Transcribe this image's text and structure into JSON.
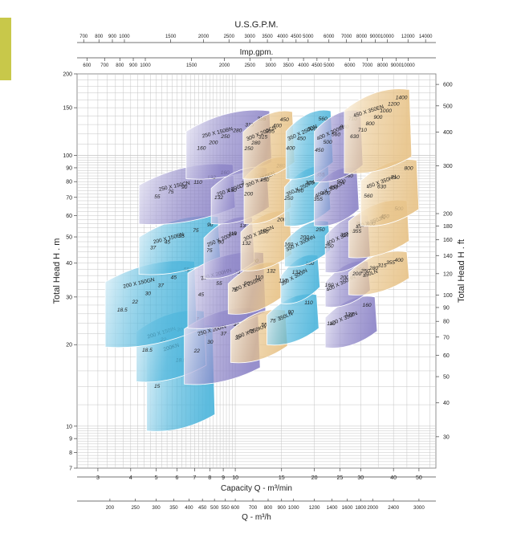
{
  "chart_data": {
    "type": "area",
    "title": "",
    "axes": {
      "top_usgpm": {
        "label": "U.S.G.P.M.",
        "ticks": [
          "700",
          "800",
          "900",
          "1000",
          "1500",
          "2000",
          "2500",
          "3000",
          "3500",
          "4000",
          "4500",
          "5000",
          "6000",
          "7000",
          "8000",
          "9000",
          "10000",
          "12000",
          "14000"
        ]
      },
      "top_imp": {
        "label": "Imp.gpm.",
        "ticks": [
          "600",
          "700",
          "800",
          "900",
          "1000",
          "1500",
          "2000",
          "2500",
          "3000",
          "3500",
          "4000",
          "4500",
          "5000",
          "6000",
          "7000",
          "8000",
          "9000",
          "10000"
        ]
      },
      "bottom_m3min": {
        "label": "Capacity Q - m³/min",
        "ticks": [
          "3",
          "4",
          "5",
          "6",
          "7",
          "8",
          "9",
          "10",
          "15",
          "20",
          "25",
          "30",
          "40",
          "50"
        ],
        "range": [
          2.5,
          58
        ],
        "scale": "log"
      },
      "bottom_m3h": {
        "label": "Q - m³/h",
        "ticks": [
          "200",
          "250",
          "300",
          "350",
          "400",
          "450",
          "500",
          "550",
          "600",
          "700",
          "800",
          "900",
          "1000",
          "1200",
          "1400",
          "1600",
          "1800",
          "2000",
          "2400",
          "3000"
        ]
      },
      "left_m": {
        "label": "Total Head H . m",
        "ticks": [
          "7",
          "8",
          "9",
          "10",
          "20",
          "30",
          "40",
          "50",
          "60",
          "70",
          "80",
          "90",
          "100",
          "150",
          "200"
        ],
        "range": [
          7,
          200
        ],
        "scale": "log"
      },
      "right_ft": {
        "label": "Total Head H . ft",
        "ticks": [
          "30",
          "40",
          "50",
          "60",
          "70",
          "80",
          "90",
          "100",
          "120",
          "140",
          "160",
          "180",
          "200",
          "300",
          "400",
          "500",
          "600"
        ]
      }
    },
    "grid": true,
    "series": [
      {
        "name": "200KN",
        "color": "#4fb6dc",
        "shade": "#e6f4fa",
        "q_range": [
          4.6,
          8.2
        ],
        "h_range": [
          9.6,
          23.5
        ],
        "labels": [
          "22",
          "18.5",
          "15"
        ]
      },
      {
        "name": "200 X 150IN",
        "color": "#4fb6dc",
        "shade": "#e6f4fa",
        "q_range": [
          4.2,
          7.6
        ],
        "h_range": [
          14.6,
          26.6
        ],
        "labels": [
          "37",
          "30",
          "22",
          "18.5"
        ]
      },
      {
        "name": "200 X 150GN",
        "color": "#4fb6dc",
        "shade": "#e6f4fa",
        "q_range": [
          3.2,
          7.0
        ],
        "h_range": [
          19.6,
          40.6
        ],
        "labels": [
          "55",
          "45",
          "37",
          "30",
          "22",
          "18.5"
        ]
      },
      {
        "name": "200 X 150EN",
        "color": "#4fb6dc",
        "shade": "#e6f4fa",
        "q_range": [
          4.3,
          8.6
        ],
        "h_range": [
          36.4,
          59.4
        ],
        "labels": [
          "90",
          "75",
          "55",
          "45",
          "37"
        ]
      },
      {
        "name": "250 X 150CN",
        "color": "#8e86c8",
        "shade": "#eeedf7",
        "q_range": [
          4.3,
          9.8
        ],
        "h_range": [
          55.8,
          92.5
        ],
        "labels": [
          "160",
          "132",
          "110",
          "90",
          "75",
          "55"
        ]
      },
      {
        "name": "250 X 150BN",
        "color": "#8e86c8",
        "shade": "#eeedf7",
        "q_range": [
          6.5,
          13.5
        ],
        "h_range": [
          82,
          146
        ],
        "labels": [
          "355",
          "315",
          "280",
          "250",
          "200",
          "160"
        ]
      },
      {
        "name": "250 X 200IN",
        "color": "#8e86c8",
        "shade": "#eeedf7",
        "q_range": [
          6.4,
          12.2
        ],
        "h_range": [
          14.3,
          27.2
        ],
        "labels": [
          "55",
          "45",
          "37",
          "30",
          "22"
        ]
      },
      {
        "name": "250 X 200HN",
        "color": "#8e86c8",
        "shade": "#eeedf7",
        "q_range": [
          6.6,
          12.8
        ],
        "h_range": [
          23,
          43.7
        ],
        "labels": [
          "90",
          "75",
          "55",
          "45"
        ]
      },
      {
        "name": "250 X 200FN",
        "color": "#8e86c8",
        "shade": "#eeedf7",
        "q_range": [
          7.6,
          11.6
        ],
        "h_range": [
          35.2,
          59
        ],
        "labels": [
          "132",
          "110",
          "90",
          "75"
        ]
      },
      {
        "name": "250 X 200DN",
        "color": "#8e86c8",
        "shade": "#eeedf7",
        "q_range": [
          8.1,
          13.2
        ],
        "h_range": [
          56,
          90
        ],
        "labels": [
          "250",
          "200",
          "160",
          "132"
        ]
      },
      {
        "name": "300 X 250KN",
        "color": "#e8c48a",
        "shade": "#fbf3e4",
        "q_range": [
          9.6,
          15.5
        ],
        "h_range": [
          17.2,
          26.8
        ],
        "labels": [
          "75",
          "55",
          "45",
          "37"
        ]
      },
      {
        "name": "300 X 250IN",
        "color": "#e8c48a",
        "shade": "#fbf3e4",
        "q_range": [
          9.4,
          14.7
        ],
        "h_range": [
          26,
          40
        ],
        "labels": [
          "132",
          "110",
          "90",
          "75"
        ]
      },
      {
        "name": "300 X 200GN",
        "color": "#e8c48a",
        "shade": "#fbf3e4",
        "q_range": [
          10.5,
          16.1
        ],
        "h_range": [
          37.6,
          62
        ],
        "labels": [
          "200",
          "160",
          "132"
        ]
      },
      {
        "name": "300 X 250EN",
        "color": "#e8c48a",
        "shade": "#fbf3e4",
        "q_range": [
          10.8,
          16
        ],
        "h_range": [
          56,
          98
        ],
        "labels": [
          "280",
          "250",
          "200"
        ]
      },
      {
        "name": "300 X 200CN",
        "color": "#e8c48a",
        "shade": "#fbf3e4",
        "q_range": [
          10.7,
          16.5
        ],
        "h_range": [
          82,
          145
        ],
        "labels": [
          "450",
          "400",
          "355",
          "315",
          "280",
          "250"
        ]
      },
      {
        "name": "350LN",
        "color": "#4fb6dc",
        "shade": "#e6f4fa",
        "q_range": [
          13.2,
          20.4
        ],
        "h_range": [
          20,
          30.6
        ],
        "labels": [
          "110",
          "90",
          "75"
        ]
      },
      {
        "name": "350 X 300IN",
        "color": "#4fb6dc",
        "shade": "#e6f4fa",
        "q_range": [
          14.9,
          20.6
        ],
        "h_range": [
          28.4,
          42.7
        ],
        "labels": [
          "160",
          "132",
          "110"
        ]
      },
      {
        "name": "350 X 300HN",
        "color": "#4fb6dc",
        "shade": "#e6f4fa",
        "q_range": [
          15.4,
          22.6
        ],
        "h_range": [
          38.9,
          57
        ],
        "labels": [
          "250",
          "200",
          "160"
        ]
      },
      {
        "name": "350 X 250FN",
        "color": "#4fb6dc",
        "shade": "#e6f4fa",
        "q_range": [
          15.4,
          22.6
        ],
        "h_range": [
          55,
          91
        ],
        "labels": [
          "355",
          "315",
          "280",
          "250"
        ]
      },
      {
        "name": "350 X 250DN",
        "color": "#4fb6dc",
        "shade": "#e6f4fa",
        "q_range": [
          15.6,
          23.1
        ],
        "h_range": [
          82,
          146
        ],
        "labels": [
          "560",
          "500",
          "450",
          "400"
        ]
      },
      {
        "name": "400 X 350IN",
        "color": "#8e86c8",
        "shade": "#eeedf7",
        "q_range": [
          22,
          34
        ],
        "h_range": [
          19.5,
          30
        ],
        "labels": [
          "160",
          "132",
          "110"
        ]
      },
      {
        "name": "400 X 350HN",
        "color": "#8e86c8",
        "shade": "#eeedf7",
        "q_range": [
          22,
          32
        ],
        "h_range": [
          27.6,
          40.5
        ],
        "labels": [
          "250",
          "200",
          "160"
        ]
      },
      {
        "name": "400 X 350FN",
        "color": "#8e86c8",
        "shade": "#eeedf7",
        "q_range": [
          22,
          32
        ],
        "h_range": [
          37,
          60
        ],
        "labels": [
          "355",
          "315",
          "250"
        ]
      },
      {
        "name": "400 X 300GN",
        "color": "#8e86c8",
        "shade": "#eeedf7",
        "q_range": [
          20,
          29
        ],
        "h_range": [
          55,
          90
        ],
        "labels": [
          "560",
          "500",
          "450",
          "400",
          "355"
        ]
      },
      {
        "name": "400 X 300EN",
        "color": "#8e86c8",
        "shade": "#eeedf7",
        "q_range": [
          20,
          30
        ],
        "h_range": [
          80,
          146
        ],
        "labels": [
          "710",
          "630",
          "560",
          "500",
          "450"
        ]
      },
      {
        "name": "450LN",
        "color": "#e8c48a",
        "shade": "#fbf3e4",
        "q_range": [
          27,
          45
        ],
        "h_range": [
          30.6,
          44
        ],
        "labels": [
          "400",
          "355",
          "315",
          "280",
          "250",
          "200"
        ]
      },
      {
        "name": "450 X 350JN",
        "color": "#e8c48a",
        "shade": "#fbf3e4",
        "q_range": [
          27,
          45
        ],
        "h_range": [
          42,
          68
        ],
        "labels": [
          "500",
          "450",
          "400",
          "355"
        ]
      },
      {
        "name": "450 X 350HN",
        "color": "#e8c48a",
        "shade": "#fbf3e4",
        "q_range": [
          30,
          49
        ],
        "h_range": [
          55,
          96
        ],
        "labels": [
          "800",
          "710",
          "630",
          "560"
        ]
      },
      {
        "name": "450 X 350EN",
        "color": "#e8c48a",
        "shade": "#fbf3e4",
        "q_range": [
          26,
          46
        ],
        "h_range": [
          86,
          175
        ],
        "labels": [
          "1400",
          "1200",
          "1000",
          "900",
          "800",
          "710",
          "630"
        ]
      }
    ]
  }
}
